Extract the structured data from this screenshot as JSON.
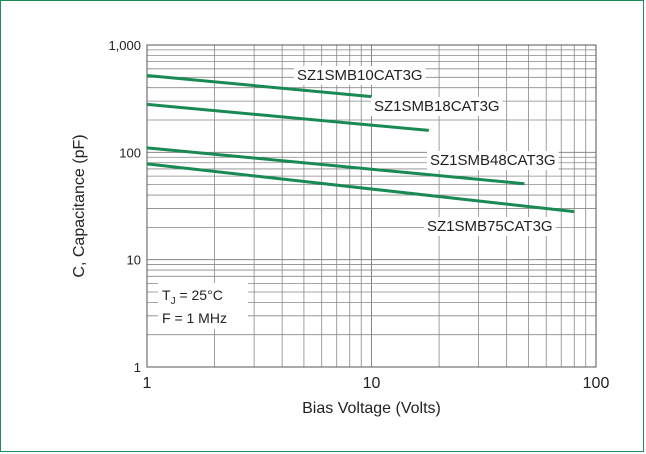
{
  "chart_data": {
    "type": "line",
    "x_scale": "log",
    "y_scale": "log",
    "xlim": [
      1,
      100
    ],
    "ylim": [
      1,
      1000
    ],
    "xlabel": "Bias Voltage (Volts)",
    "ylabel": "C, Capacitance (pF)",
    "x_ticks": [
      "1",
      "10",
      "100"
    ],
    "y_ticks": [
      "1",
      "10",
      "100",
      "1,000"
    ],
    "grid": true,
    "line_color": "#1a8a55",
    "grid_color": "#888888",
    "frame_color": "#1f8a5a",
    "series": [
      {
        "name": "SZ1SMB10CAT3G",
        "x": [
          1,
          10
        ],
        "y": [
          520,
          330
        ]
      },
      {
        "name": "SZ1SMB18CAT3G",
        "x": [
          1,
          18
        ],
        "y": [
          280,
          160
        ]
      },
      {
        "name": "SZ1SMB48CAT3G",
        "x": [
          1,
          48
        ],
        "y": [
          110,
          51
        ]
      },
      {
        "name": "SZ1SMB75CAT3G",
        "x": [
          1,
          80
        ],
        "y": [
          78,
          28
        ]
      }
    ],
    "conditions": {
      "tj_prefix": "T",
      "tj_sub": "J",
      "tj_suffix": " = 25°C",
      "freq": "F = 1 MHz"
    }
  }
}
